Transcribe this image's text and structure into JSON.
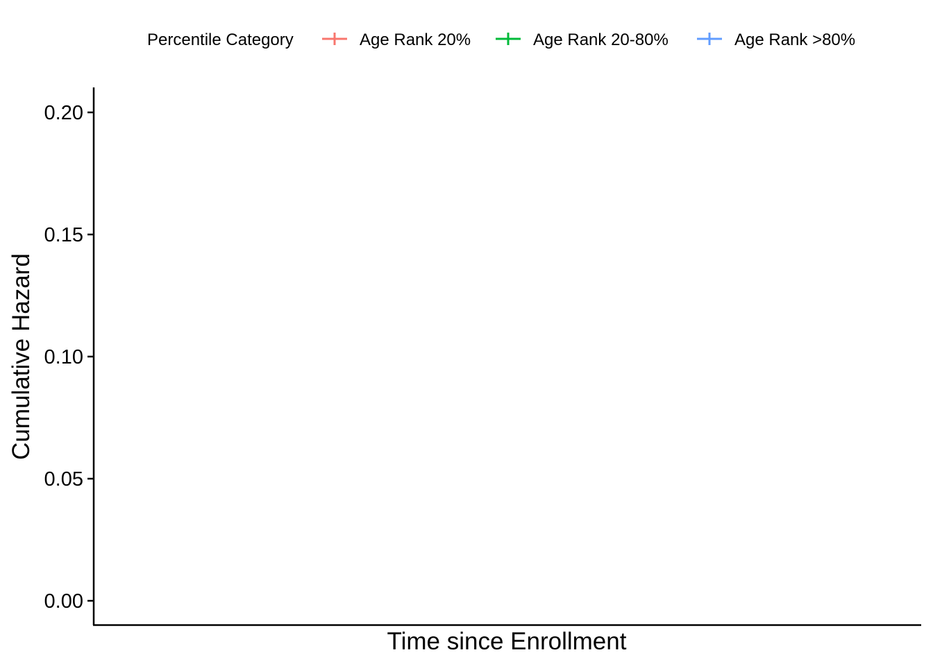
{
  "chart_data": {
    "type": "line",
    "title": "",
    "xlabel": "Time since Enrollment",
    "ylabel": "Cumulative Hazard",
    "ylim": [
      -0.01,
      0.21
    ],
    "yticks": [
      0.0,
      0.05,
      0.1,
      0.15,
      0.2
    ],
    "ytick_labels": [
      "0.00",
      "0.05",
      "0.10",
      "0.15",
      "0.20"
    ],
    "xticks": [],
    "grid": false,
    "legend": {
      "title": "Percentile Category",
      "placement": "top",
      "entries": [
        {
          "label": "Age Rank 20%",
          "color": "#F8766D"
        },
        {
          "label": "Age Rank 20-80%",
          "color": "#00BA38"
        },
        {
          "label": "Age Rank >80%",
          "color": "#619CFF"
        }
      ]
    },
    "series": [
      {
        "name": "Age Rank 20%",
        "color": "#F8766D",
        "x": [],
        "y": []
      },
      {
        "name": "Age Rank 20-80%",
        "color": "#00BA38",
        "x": [],
        "y": []
      },
      {
        "name": "Age Rank >80%",
        "color": "#619CFF",
        "x": [],
        "y": []
      }
    ]
  }
}
